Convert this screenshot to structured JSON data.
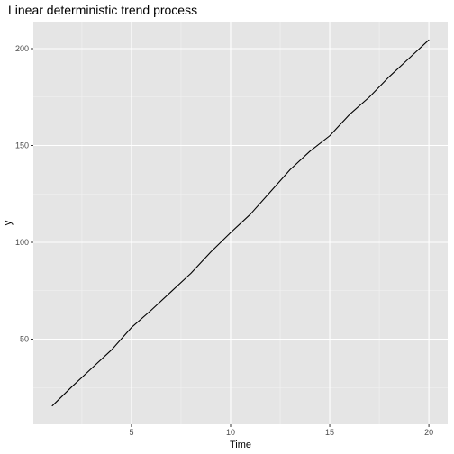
{
  "chart_data": {
    "type": "line",
    "title": "Linear deterministic trend process",
    "xlabel": "Time",
    "ylabel": "y",
    "x": [
      1,
      2,
      3,
      4,
      5,
      6,
      7,
      8,
      9,
      10,
      11,
      12,
      13,
      14,
      15,
      16,
      17,
      18,
      19,
      20
    ],
    "series": [
      {
        "values": [
          15.5,
          25.5,
          35.0,
          44.5,
          56.0,
          65.0,
          74.5,
          84.0,
          95.0,
          105.0,
          114.5,
          126.0,
          137.5,
          147.0,
          155.0,
          166.0,
          175.0,
          185.5,
          195.0,
          204.5
        ]
      }
    ],
    "xlim": [
      0.05,
      20.95
    ],
    "ylim": [
      6.05,
      213.95
    ],
    "x_ticks": [
      5,
      10,
      15,
      20
    ],
    "y_ticks": [
      50,
      100,
      150,
      200
    ],
    "x_tick_labels": [
      "5",
      "10",
      "15",
      "20"
    ],
    "y_tick_labels": [
      "50",
      "100",
      "150",
      "200"
    ],
    "grid": true,
    "colors": {
      "panel_background": "#e5e5e5",
      "grid_major": "#ffffff",
      "grid_minor": "#f2f2f2",
      "line": "#000000",
      "tick_label": "#4d4d4d"
    }
  }
}
